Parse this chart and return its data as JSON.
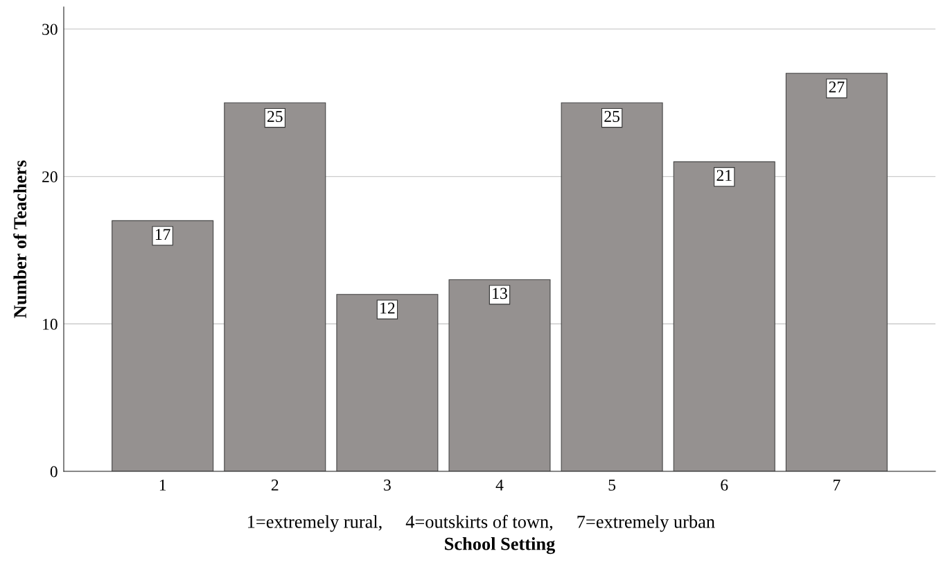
{
  "chart_data": {
    "type": "bar",
    "categories": [
      "1",
      "2",
      "3",
      "4",
      "5",
      "6",
      "7"
    ],
    "values": [
      17,
      25,
      12,
      13,
      25,
      21,
      27
    ],
    "color": "#959190",
    "ylabel": "Number of Teachers",
    "xlabel": "School Setting",
    "annotations": [
      "1=extremely rural,     4=outskirts of town,     7=extremely urban"
    ],
    "ylim": [
      0,
      31.5
    ],
    "yticks": [
      0,
      10,
      20,
      30
    ],
    "grid": "y",
    "data_labels": true
  }
}
